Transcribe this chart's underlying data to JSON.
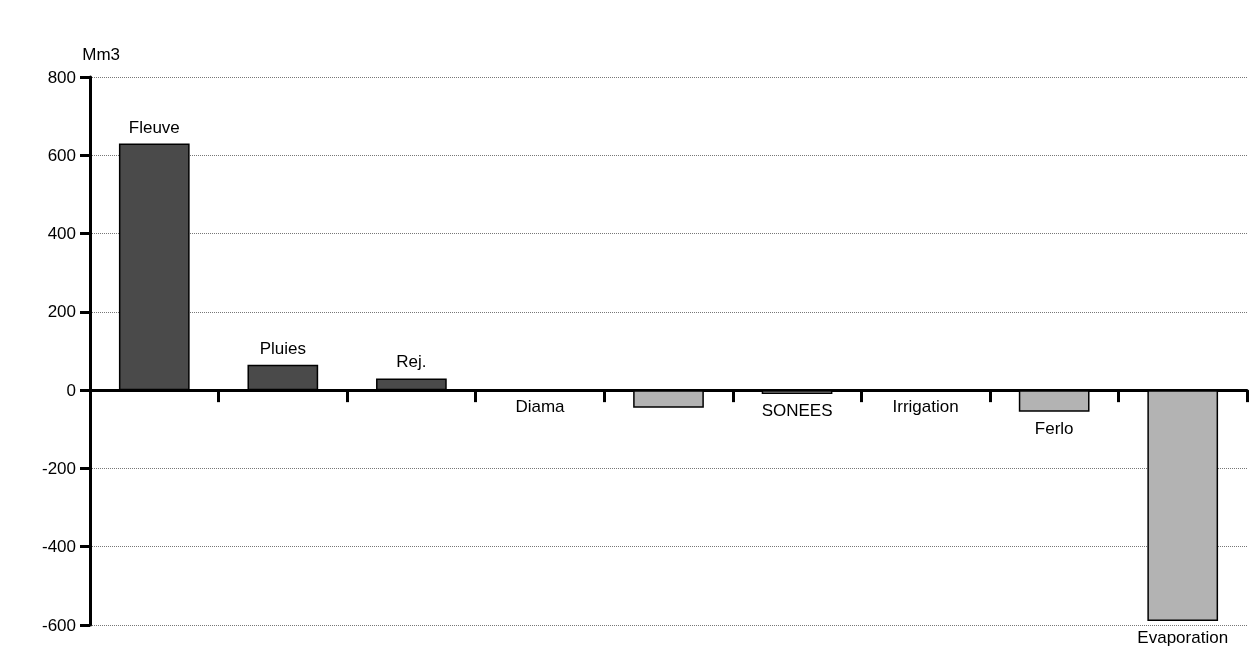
{
  "chart_data": {
    "type": "bar",
    "ylabel": "Mm3",
    "categories": [
      "Fleuve",
      "Pluies",
      "Rej.",
      "Diama",
      null,
      "SONEES",
      "Irrigation",
      "Ferlo",
      "Evaporation"
    ],
    "values": [
      630,
      65,
      30,
      0,
      -45,
      -10,
      0,
      -55,
      -590
    ],
    "colors": [
      "#4a4a4a",
      "#4a4a4a",
      "#4a4a4a",
      "#b3b3b3",
      "#b3b3b3",
      "#b3b3b3",
      "#b3b3b3",
      "#b3b3b3",
      "#b3b3b3"
    ],
    "ylim": [
      -600,
      800
    ],
    "yticks": [
      -600,
      -400,
      -200,
      0,
      200,
      400,
      600,
      800
    ],
    "grid": "y"
  }
}
